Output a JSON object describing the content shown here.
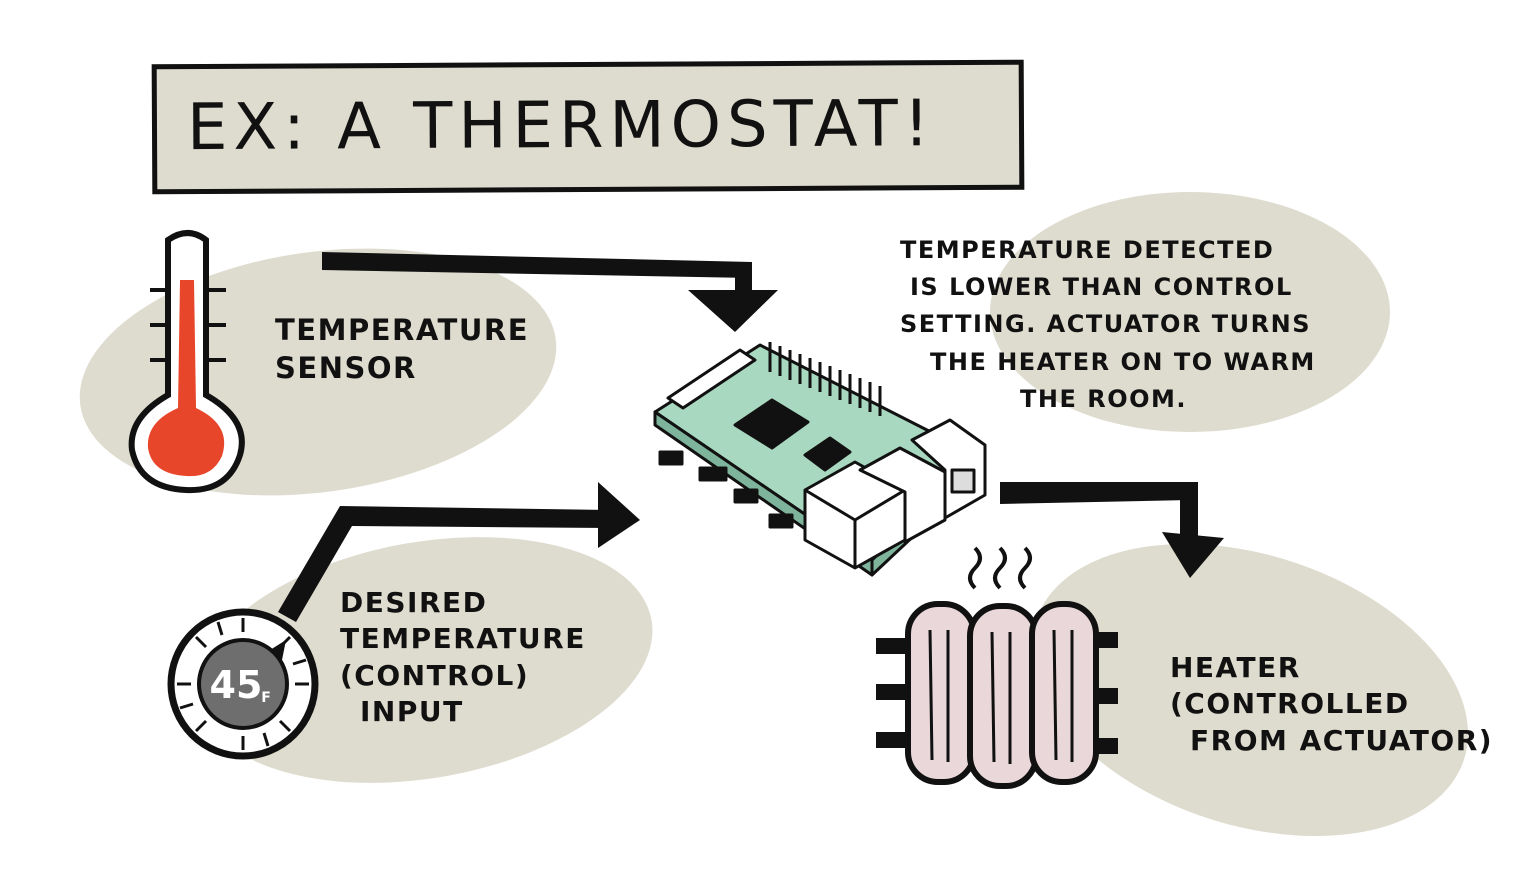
{
  "title": "EX: A THERMOSTAT!",
  "sensor_label": [
    "TEMPERATURE",
    "SENSOR"
  ],
  "desired_label": [
    "DESIRED",
    "TEMPERATURE",
    "(CONTROL)",
    "INPUT"
  ],
  "dial_value": "45",
  "dial_unit": "F",
  "note_label": [
    "TEMPERATURE DETECTED",
    "IS LOWER THAN CONTROL",
    "SETTING. ACTUATOR TURNS",
    "THE HEATER ON TO WARM",
    "THE ROOM."
  ],
  "heater_label": [
    "HEATER",
    "(CONTROLLED",
    "FROM ACTUATOR)"
  ],
  "colors": {
    "blob": "#dedcce",
    "thermometer_fill": "#e8462a",
    "board": "#a9d8c0",
    "heater": "#ead7da",
    "ink": "#111111"
  }
}
